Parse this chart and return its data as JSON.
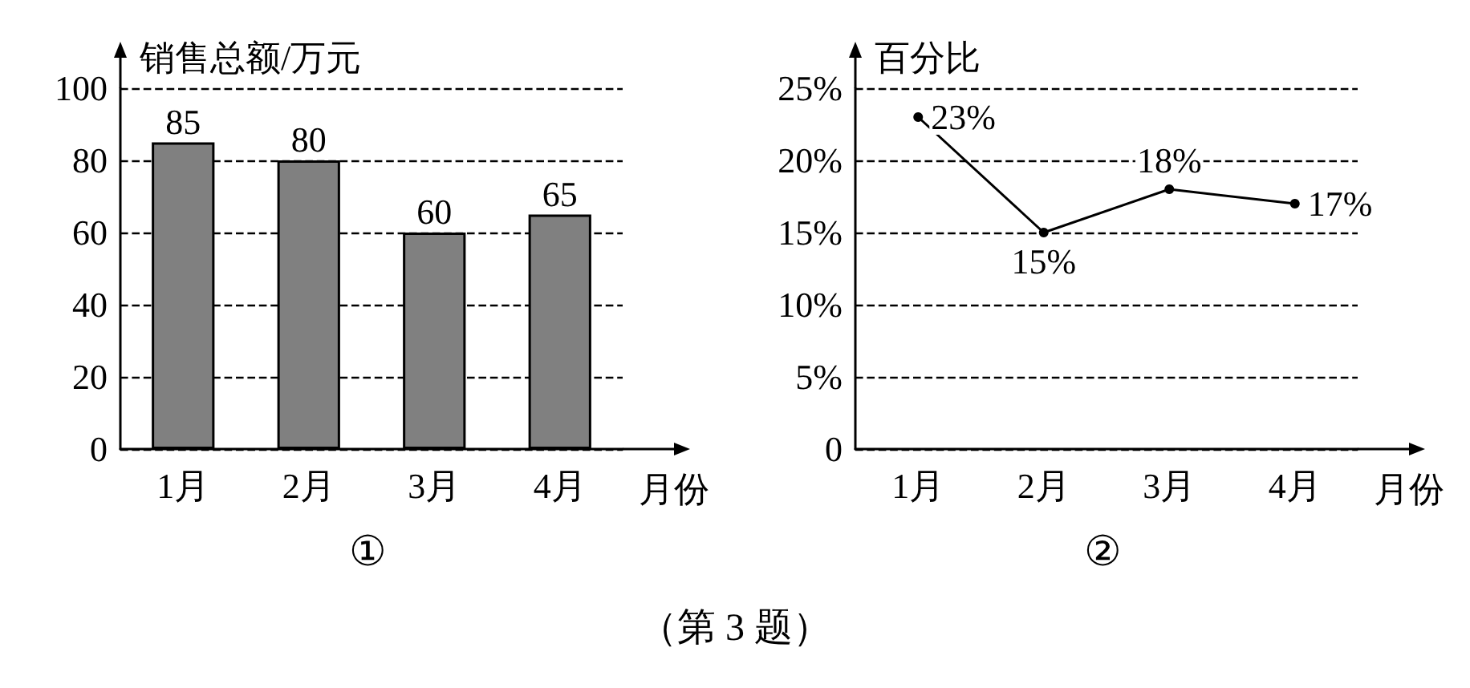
{
  "chart_data": [
    {
      "type": "bar",
      "ylabel": "销售总额/万元",
      "xlabel": "月份",
      "categories": [
        "1月",
        "2月",
        "3月",
        "4月"
      ],
      "values": [
        85,
        80,
        60,
        65
      ],
      "color": "#808080",
      "ylim": [
        0,
        100
      ],
      "yticks": [
        0,
        20,
        40,
        60,
        80,
        100
      ],
      "grid": "y",
      "data_labels": true,
      "annotations": [
        "①",
        "（第 3 题）"
      ]
    },
    {
      "type": "line",
      "ylabel": "百分比",
      "xlabel": "月份",
      "categories": [
        "1月",
        "2月",
        "3月",
        "4月"
      ],
      "values": [
        23,
        15,
        18,
        17
      ],
      "value_labels": [
        "23%",
        "15%",
        "18%",
        "17%"
      ],
      "color": "#000000",
      "marker": "circle",
      "line_style": "solid",
      "ylim": [
        0,
        25
      ],
      "yticks": [
        0,
        {
          "value": 5,
          "label": "5%"
        },
        {
          "value": 10,
          "label": "10%"
        },
        {
          "value": 15,
          "label": "15%"
        },
        {
          "value": 20,
          "label": "20%"
        },
        {
          "value": 25,
          "label": "25%"
        }
      ],
      "grid": "y",
      "annotations": [
        "②"
      ]
    }
  ]
}
